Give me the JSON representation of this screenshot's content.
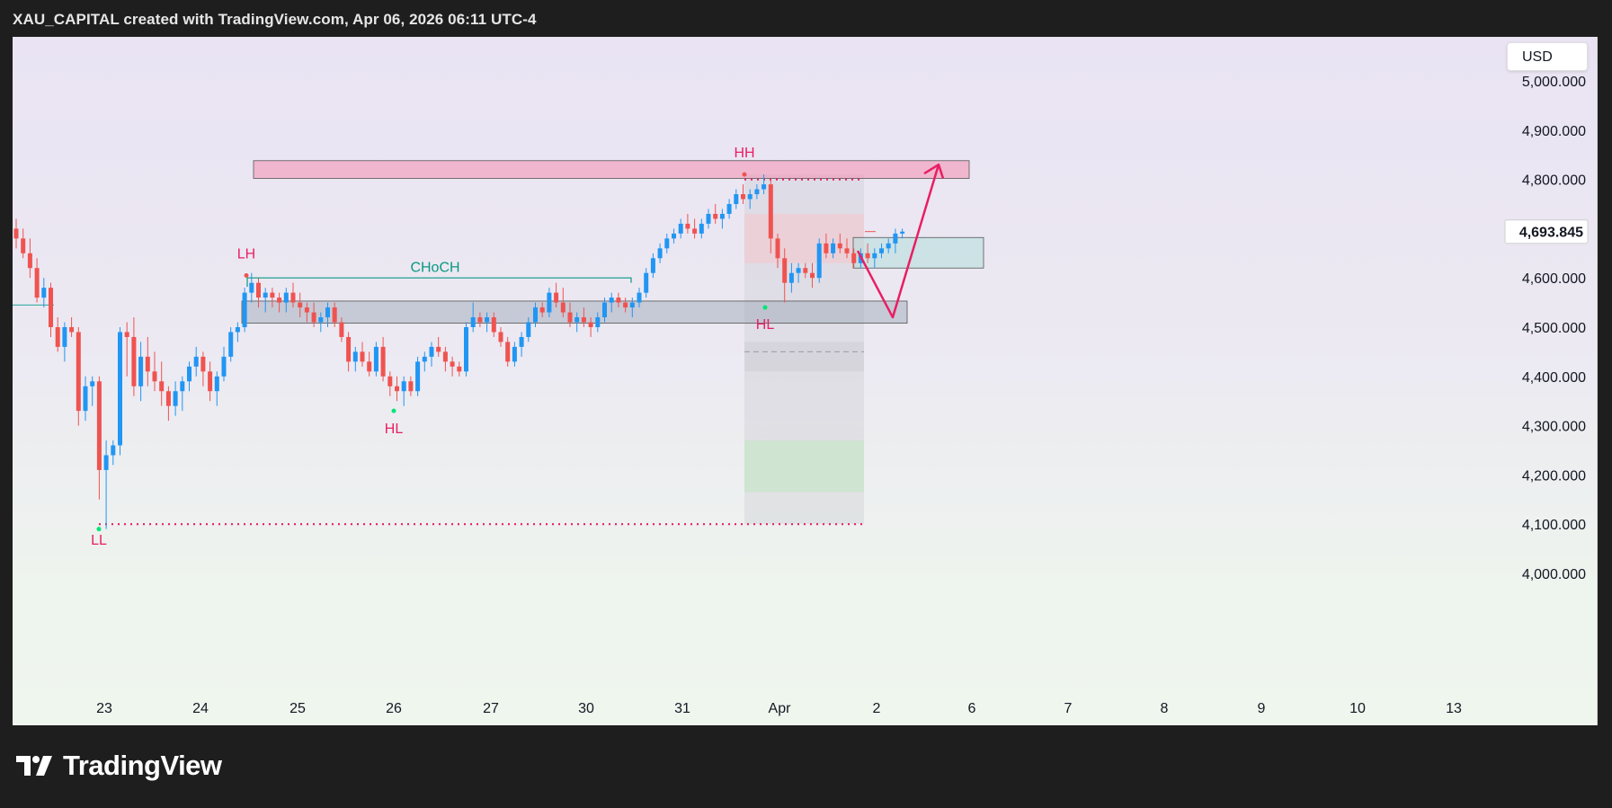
{
  "header": {
    "title": "XAU_CAPITAL created with TradingView.com, Apr 06, 2026 06:11 UTC-4"
  },
  "brand": {
    "name": "TradingView",
    "logo_icon": "tradingview-logo-icon"
  },
  "currency": "USD",
  "current_price": "4,693.845",
  "colors": {
    "up": "#2196f3",
    "down": "#ef5350",
    "annotation": "#e91e63",
    "choch": "#089981",
    "zone_red": "#f48fb1"
  },
  "chart_data": {
    "type": "candlestick",
    "price_axis": {
      "labels": [
        "5,000.000",
        "4,900.000",
        "4,800.000",
        "4,700.000",
        "4,600.000",
        "4,500.000",
        "4,400.000",
        "4,300.000",
        "4,200.000",
        "4,100.000",
        "4,000.000"
      ],
      "ylim": [
        3950,
        5080
      ]
    },
    "time_axis": {
      "labels": [
        "23",
        "24",
        "25",
        "26",
        "27",
        "30",
        "31",
        "Apr",
        "2",
        "6",
        "7",
        "8",
        "9",
        "10",
        "13"
      ]
    },
    "candles": [
      [
        4700,
        4720,
        4660,
        4680
      ],
      [
        4680,
        4700,
        4640,
        4650
      ],
      [
        4650,
        4680,
        4600,
        4620
      ],
      [
        4620,
        4640,
        4550,
        4560
      ],
      [
        4560,
        4600,
        4540,
        4580
      ],
      [
        4580,
        4590,
        4480,
        4500
      ],
      [
        4500,
        4520,
        4450,
        4460
      ],
      [
        4460,
        4510,
        4430,
        4500
      ],
      [
        4500,
        4520,
        4480,
        4490
      ],
      [
        4490,
        4500,
        4300,
        4330
      ],
      [
        4330,
        4400,
        4310,
        4380
      ],
      [
        4380,
        4400,
        4340,
        4390
      ],
      [
        4390,
        4400,
        4150,
        4210
      ],
      [
        4210,
        4270,
        4090,
        4240
      ],
      [
        4240,
        4270,
        4220,
        4260
      ],
      [
        4260,
        4500,
        4240,
        4490
      ],
      [
        4490,
        4510,
        4400,
        4480
      ],
      [
        4480,
        4520,
        4360,
        4380
      ],
      [
        4380,
        4470,
        4350,
        4440
      ],
      [
        4440,
        4480,
        4380,
        4410
      ],
      [
        4410,
        4450,
        4370,
        4390
      ],
      [
        4390,
        4430,
        4340,
        4370
      ],
      [
        4370,
        4380,
        4310,
        4340
      ],
      [
        4340,
        4390,
        4320,
        4370
      ],
      [
        4370,
        4400,
        4330,
        4390
      ],
      [
        4390,
        4430,
        4370,
        4420
      ],
      [
        4420,
        4460,
        4400,
        4440
      ],
      [
        4440,
        4450,
        4380,
        4410
      ],
      [
        4410,
        4430,
        4350,
        4370
      ],
      [
        4370,
        4410,
        4340,
        4400
      ],
      [
        4400,
        4460,
        4390,
        4440
      ],
      [
        4440,
        4500,
        4430,
        4490
      ],
      [
        4490,
        4510,
        4470,
        4500
      ],
      [
        4500,
        4580,
        4490,
        4570
      ],
      [
        4570,
        4610,
        4550,
        4590
      ],
      [
        4590,
        4600,
        4540,
        4560
      ],
      [
        4560,
        4580,
        4530,
        4570
      ],
      [
        4570,
        4580,
        4540,
        4560
      ],
      [
        4560,
        4570,
        4530,
        4550
      ],
      [
        4550,
        4580,
        4530,
        4570
      ],
      [
        4570,
        4590,
        4540,
        4550
      ],
      [
        4550,
        4570,
        4520,
        4540
      ],
      [
        4540,
        4550,
        4510,
        4530
      ],
      [
        4530,
        4550,
        4500,
        4510
      ],
      [
        4510,
        4530,
        4490,
        4520
      ],
      [
        4520,
        4550,
        4500,
        4540
      ],
      [
        4540,
        4550,
        4500,
        4510
      ],
      [
        4510,
        4520,
        4470,
        4480
      ],
      [
        4480,
        4490,
        4410,
        4430
      ],
      [
        4430,
        4460,
        4410,
        4450
      ],
      [
        4450,
        4470,
        4420,
        4430
      ],
      [
        4430,
        4450,
        4400,
        4410
      ],
      [
        4410,
        4470,
        4400,
        4460
      ],
      [
        4460,
        4480,
        4390,
        4400
      ],
      [
        4400,
        4410,
        4360,
        4380
      ],
      [
        4380,
        4400,
        4350,
        4370
      ],
      [
        4370,
        4400,
        4340,
        4390
      ],
      [
        4390,
        4400,
        4360,
        4370
      ],
      [
        4370,
        4440,
        4360,
        4430
      ],
      [
        4430,
        4450,
        4410,
        4440
      ],
      [
        4440,
        4470,
        4420,
        4460
      ],
      [
        4460,
        4480,
        4440,
        4450
      ],
      [
        4450,
        4460,
        4410,
        4430
      ],
      [
        4430,
        4440,
        4400,
        4420
      ],
      [
        4420,
        4430,
        4400,
        4410
      ],
      [
        4410,
        4510,
        4400,
        4500
      ],
      [
        4500,
        4550,
        4490,
        4520
      ],
      [
        4520,
        4530,
        4500,
        4510
      ],
      [
        4510,
        4530,
        4490,
        4520
      ],
      [
        4520,
        4530,
        4480,
        4490
      ],
      [
        4490,
        4500,
        4460,
        4470
      ],
      [
        4470,
        4480,
        4420,
        4430
      ],
      [
        4430,
        4470,
        4420,
        4460
      ],
      [
        4460,
        4490,
        4440,
        4480
      ],
      [
        4480,
        4520,
        4470,
        4510
      ],
      [
        4510,
        4550,
        4500,
        4540
      ],
      [
        4540,
        4550,
        4520,
        4530
      ],
      [
        4530,
        4580,
        4520,
        4570
      ],
      [
        4570,
        4590,
        4540,
        4550
      ],
      [
        4550,
        4580,
        4520,
        4530
      ],
      [
        4530,
        4550,
        4500,
        4510
      ],
      [
        4510,
        4530,
        4490,
        4520
      ],
      [
        4520,
        4540,
        4500,
        4510
      ],
      [
        4510,
        4520,
        4480,
        4500
      ],
      [
        4500,
        4530,
        4490,
        4520
      ],
      [
        4520,
        4560,
        4510,
        4550
      ],
      [
        4550,
        4570,
        4530,
        4560
      ],
      [
        4560,
        4570,
        4540,
        4550
      ],
      [
        4550,
        4560,
        4530,
        4540
      ],
      [
        4540,
        4560,
        4520,
        4550
      ],
      [
        4550,
        4580,
        4540,
        4570
      ],
      [
        4570,
        4620,
        4560,
        4610
      ],
      [
        4610,
        4650,
        4600,
        4640
      ],
      [
        4640,
        4670,
        4630,
        4660
      ],
      [
        4660,
        4690,
        4650,
        4680
      ],
      [
        4680,
        4700,
        4670,
        4690
      ],
      [
        4690,
        4720,
        4680,
        4710
      ],
      [
        4710,
        4730,
        4690,
        4700
      ],
      [
        4700,
        4720,
        4680,
        4690
      ],
      [
        4690,
        4720,
        4680,
        4710
      ],
      [
        4710,
        4740,
        4700,
        4730
      ],
      [
        4730,
        4750,
        4710,
        4720
      ],
      [
        4720,
        4740,
        4700,
        4730
      ],
      [
        4730,
        4760,
        4720,
        4750
      ],
      [
        4750,
        4780,
        4740,
        4770
      ],
      [
        4770,
        4790,
        4750,
        4760
      ],
      [
        4760,
        4780,
        4740,
        4770
      ],
      [
        4770,
        4790,
        4760,
        4780
      ],
      [
        4780,
        4810,
        4770,
        4790
      ],
      [
        4790,
        4800,
        4650,
        4680
      ],
      [
        4680,
        4690,
        4620,
        4640
      ],
      [
        4640,
        4660,
        4550,
        4590
      ],
      [
        4590,
        4630,
        4570,
        4610
      ],
      [
        4610,
        4630,
        4590,
        4620
      ],
      [
        4620,
        4630,
        4600,
        4610
      ],
      [
        4610,
        4630,
        4580,
        4600
      ],
      [
        4600,
        4680,
        4590,
        4670
      ],
      [
        4670,
        4690,
        4640,
        4650
      ],
      [
        4650,
        4680,
        4640,
        4670
      ],
      [
        4670,
        4690,
        4650,
        4660
      ],
      [
        4660,
        4680,
        4640,
        4650
      ],
      [
        4650,
        4660,
        4620,
        4630
      ],
      [
        4630,
        4660,
        4620,
        4650
      ],
      [
        4650,
        4670,
        4630,
        4640
      ],
      [
        4640,
        4660,
        4620,
        4650
      ],
      [
        4650,
        4670,
        4640,
        4660
      ],
      [
        4660,
        4680,
        4650,
        4670
      ],
      [
        4670,
        4700,
        4650,
        4690
      ],
      [
        4690,
        4700,
        4680,
        4694
      ]
    ],
    "annotations": [
      {
        "text": "LH",
        "color": "#e91e63"
      },
      {
        "text": "CHoCH",
        "color": "#089981"
      },
      {
        "text": "HL",
        "color": "#e91e63"
      },
      {
        "text": "LL",
        "color": "#e91e63"
      },
      {
        "text": "HH",
        "color": "#e91e63"
      },
      {
        "text": "HL",
        "color": "#e91e63"
      }
    ],
    "zones": [
      {
        "name": "supply-zone",
        "from": 4802,
        "to": 4838,
        "color": "#f48fb1"
      },
      {
        "name": "support-zone",
        "from": 4508,
        "to": 4553,
        "color": "#9aa4b4"
      },
      {
        "name": "target-zone",
        "from": 4620,
        "to": 4682,
        "color": "#b2dfdb"
      }
    ],
    "levels": [
      {
        "name": "hh-level",
        "price": 4800
      },
      {
        "name": "ll-level",
        "price": 4100
      }
    ]
  }
}
